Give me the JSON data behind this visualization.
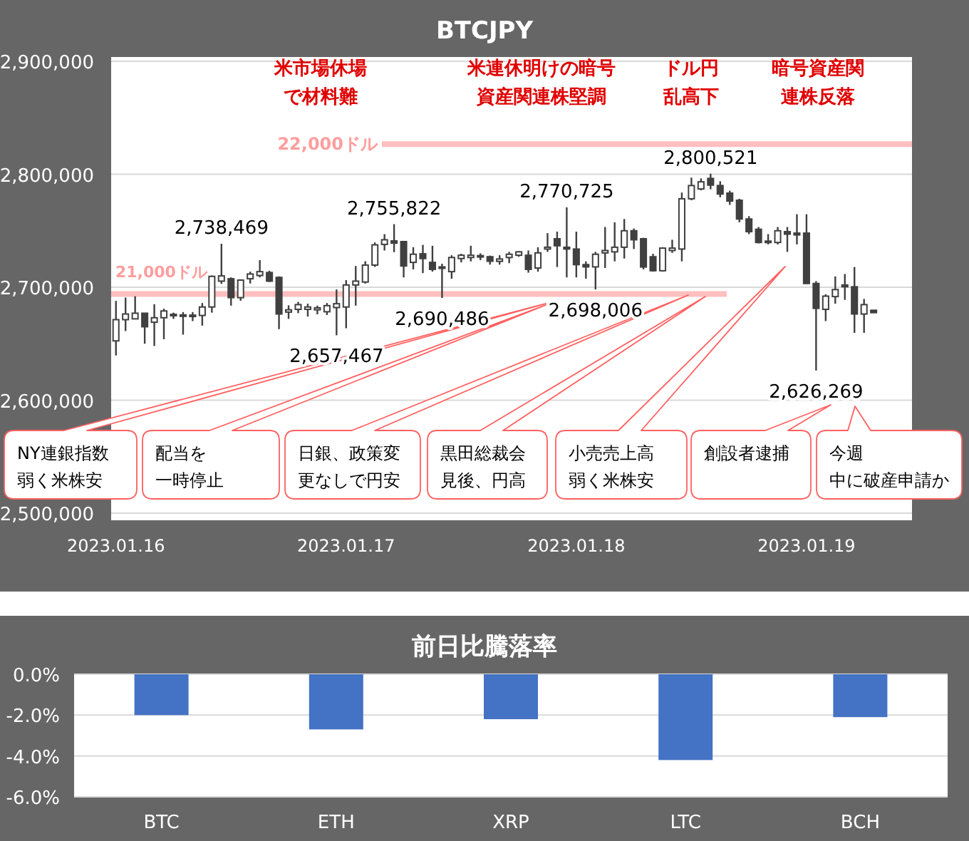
{
  "chart_data": [
    {
      "type": "candlestick",
      "title": "BTCJPY",
      "x": [
        "2023-01-16T00:00",
        "2023-01-16T01:00",
        "2023-01-16T02:00",
        "2023-01-16T03:00",
        "2023-01-16T04:00",
        "2023-01-16T05:00",
        "2023-01-16T06:00",
        "2023-01-16T07:00",
        "2023-01-16T08:00",
        "2023-01-16T09:00",
        "2023-01-16T10:00",
        "2023-01-16T11:00",
        "2023-01-16T12:00",
        "2023-01-16T13:00",
        "2023-01-16T14:00",
        "2023-01-16T15:00",
        "2023-01-16T16:00",
        "2023-01-16T17:00",
        "2023-01-16T18:00",
        "2023-01-16T19:00",
        "2023-01-16T20:00",
        "2023-01-16T21:00",
        "2023-01-16T22:00",
        "2023-01-16T23:00",
        "2023-01-17T00:00",
        "2023-01-17T01:00",
        "2023-01-17T02:00",
        "2023-01-17T03:00",
        "2023-01-17T04:00",
        "2023-01-17T05:00",
        "2023-01-17T06:00",
        "2023-01-17T07:00",
        "2023-01-17T08:00",
        "2023-01-17T09:00",
        "2023-01-17T10:00",
        "2023-01-17T11:00",
        "2023-01-17T12:00",
        "2023-01-17T13:00",
        "2023-01-17T14:00",
        "2023-01-17T15:00",
        "2023-01-17T16:00",
        "2023-01-17T17:00",
        "2023-01-17T18:00",
        "2023-01-17T19:00",
        "2023-01-17T20:00",
        "2023-01-17T21:00",
        "2023-01-17T22:00",
        "2023-01-17T23:00",
        "2023-01-18T00:00",
        "2023-01-18T01:00",
        "2023-01-18T02:00",
        "2023-01-18T03:00",
        "2023-01-18T04:00",
        "2023-01-18T05:00",
        "2023-01-18T06:00",
        "2023-01-18T07:00",
        "2023-01-18T08:00",
        "2023-01-18T09:00",
        "2023-01-18T10:00",
        "2023-01-18T11:00",
        "2023-01-18T12:00",
        "2023-01-18T13:00",
        "2023-01-18T14:00",
        "2023-01-18T15:00",
        "2023-01-18T16:00",
        "2023-01-18T17:00",
        "2023-01-18T18:00",
        "2023-01-18T19:00",
        "2023-01-18T20:00",
        "2023-01-18T21:00",
        "2023-01-18T22:00",
        "2023-01-18T23:00",
        "2023-01-19T00:00",
        "2023-01-19T01:00",
        "2023-01-19T02:00",
        "2023-01-19T03:00",
        "2023-01-19T04:00",
        "2023-01-19T05:00",
        "2023-01-19T06:00",
        "2023-01-19T07:00"
      ],
      "series": [
        {
          "color": "#404040",
          "ohlc": [
            [
              2652500,
              2687900,
              2639600,
              2671300
            ],
            [
              2671300,
              2690800,
              2661200,
              2676300
            ],
            [
              2672000,
              2692000,
              2672000,
              2677000
            ],
            [
              2677000,
              2677000,
              2650000,
              2665000
            ],
            [
              2669000,
              2685000,
              2648000,
              2673000
            ],
            [
              2673000,
              2681000,
              2654000,
              2679000
            ],
            [
              2676000,
              2677500,
              2672000,
              2675000
            ],
            [
              2675500,
              2678000,
              2658000,
              2675000
            ],
            [
              2674700,
              2678000,
              2670000,
              2675300
            ],
            [
              2675000,
              2686000,
              2666000,
              2682500
            ],
            [
              2682500,
              2710400,
              2677500,
              2709600
            ],
            [
              2705400,
              2738469,
              2703000,
              2710000
            ],
            [
              2707500,
              2708700,
              2683700,
              2690800
            ],
            [
              2690800,
              2707000,
              2688000,
              2706300
            ],
            [
              2707500,
              2713800,
              2703300,
              2711700
            ],
            [
              2710400,
              2724000,
              2708700,
              2713800
            ],
            [
              2713000,
              2714600,
              2704600,
              2705400
            ],
            [
              2708700,
              2709600,
              2662900,
              2676300
            ],
            [
              2678000,
              2684000,
              2672000,
              2680000
            ],
            [
              2680400,
              2687000,
              2677000,
              2684600
            ],
            [
              2680400,
              2685400,
              2674000,
              2682500
            ],
            [
              2680000,
              2683700,
              2676000,
              2681700
            ],
            [
              2678300,
              2686000,
              2675400,
              2683700
            ],
            [
              2682000,
              2698000,
              2657467,
              2685400
            ],
            [
              2682500,
              2706300,
              2663700,
              2702000
            ],
            [
              2702000,
              2718800,
              2683700,
              2705400
            ],
            [
              2704600,
              2723000,
              2703300,
              2719600
            ],
            [
              2719600,
              2739600,
              2718000,
              2737500
            ],
            [
              2737900,
              2747000,
              2732500,
              2742000
            ],
            [
              2741000,
              2755822,
              2731000,
              2739000
            ],
            [
              2740400,
              2740800,
              2708700,
              2718800
            ],
            [
              2722000,
              2735400,
              2715800,
              2729200
            ],
            [
              2729600,
              2737500,
              2712500,
              2725400
            ],
            [
              2722000,
              2736700,
              2713800,
              2715800
            ],
            [
              2718000,
              2720800,
              2690486,
              2716700
            ],
            [
              2713800,
              2728300,
              2707500,
              2726300
            ],
            [
              2725400,
              2729600,
              2722000,
              2728300
            ],
            [
              2726300,
              2736700,
              2722900,
              2728300
            ],
            [
              2727000,
              2730000,
              2724000,
              2728000
            ],
            [
              2727000,
              2728000,
              2720000,
              2723000
            ],
            [
              2722900,
              2728300,
              2720000,
              2725000
            ],
            [
              2726300,
              2731300,
              2721300,
              2729200
            ],
            [
              2728300,
              2732000,
              2727000,
              2731300
            ],
            [
              2728300,
              2732500,
              2712900,
              2715800
            ],
            [
              2717000,
              2735400,
              2713800,
              2730400
            ],
            [
              2733800,
              2747900,
              2731300,
              2735400
            ],
            [
              2742900,
              2749200,
              2717900,
              2736700
            ],
            [
              2735400,
              2770725,
              2708700,
              2733800
            ],
            [
              2733800,
              2749200,
              2708700,
              2720000
            ],
            [
              2720000,
              2722900,
              2707500,
              2718000
            ],
            [
              2718000,
              2731300,
              2698006,
              2729200
            ],
            [
              2730400,
              2753300,
              2717000,
              2732500
            ],
            [
              2731300,
              2757500,
              2722900,
              2735400
            ],
            [
              2735400,
              2760400,
              2725400,
              2750000
            ],
            [
              2750000,
              2752000,
              2733800,
              2742000
            ],
            [
              2742900,
              2743800,
              2715800,
              2717900
            ],
            [
              2727000,
              2729600,
              2713800,
              2714600
            ],
            [
              2714600,
              2735400,
              2713800,
              2734600
            ],
            [
              2732500,
              2742000,
              2730400,
              2734600
            ],
            [
              2733800,
              2783800,
              2722900,
              2778300
            ],
            [
              2778300,
              2797000,
              2777000,
              2790000
            ],
            [
              2787000,
              2796300,
              2785800,
              2793300
            ],
            [
              2796300,
              2800521,
              2786700,
              2790400
            ],
            [
              2790000,
              2793800,
              2779600,
              2782500
            ],
            [
              2783300,
              2785400,
              2772900,
              2776300
            ],
            [
              2777000,
              2778300,
              2757500,
              2760400
            ],
            [
              2760400,
              2762900,
              2747000,
              2749200
            ],
            [
              2751300,
              2753300,
              2738800,
              2739600
            ],
            [
              2740800,
              2747000,
              2737900,
              2739600
            ],
            [
              2739600,
              2753300,
              2737900,
              2750000
            ],
            [
              2749200,
              2753300,
              2731300,
              2747000
            ],
            [
              2747900,
              2764600,
              2737900,
              2746300
            ],
            [
              2747900,
              2764600,
              2703300,
              2703300
            ],
            [
              2703300,
              2705400,
              2626269,
              2681300
            ],
            [
              2680400,
              2693800,
              2670000,
              2692100
            ],
            [
              2691700,
              2709600,
              2685400,
              2697900
            ],
            [
              2702000,
              2711700,
              2688800,
              2700400
            ],
            [
              2700400,
              2717900,
              2659600,
              2676300
            ],
            [
              2676300,
              2689600,
              2659600,
              2684600
            ],
            [
              2679600,
              2679600,
              2677500,
              2677500
            ]
          ]
        }
      ],
      "xlim": [
        "2023-01-15T23:30",
        "2023-01-19T11:00"
      ],
      "xticks": [
        {
          "value": "2023-01-16",
          "label": "2023.01.16"
        },
        {
          "value": "2023-01-17",
          "label": "2023.01.17"
        },
        {
          "value": "2023-01-18",
          "label": "2023.01.18"
        },
        {
          "value": "2023-01-19",
          "label": "2023.01.19"
        }
      ],
      "ylim": [
        2500000,
        2900000
      ],
      "yticks": [
        {
          "value": 2500000,
          "label": "2,500,000"
        },
        {
          "value": 2600000,
          "label": "2,600,000"
        },
        {
          "value": 2700000,
          "label": "2,700,000"
        },
        {
          "value": 2800000,
          "label": "2,800,000"
        },
        {
          "value": 2900000,
          "label": "2,900,000"
        }
      ],
      "grid": "y",
      "ref_lines": [
        {
          "axis": "y",
          "value": 2826600,
          "label": "22,000ドル",
          "color": "#ffbfbf"
        },
        {
          "axis": "y",
          "value": 2694000,
          "label": "21,000ドル",
          "color": "#ffbfbf"
        }
      ],
      "annotations": [
        {
          "text": "2,738,469",
          "x": "2023-01-16T11:00",
          "y": 2738469
        },
        {
          "text": "2,657,467",
          "x": "2023-01-16T23:00",
          "y": 2657467
        },
        {
          "text": "2,755,822",
          "x": "2023-01-17T05:00",
          "y": 2755822
        },
        {
          "text": "2,690,486",
          "x": "2023-01-17T10:00",
          "y": 2690486
        },
        {
          "text": "2,770,725",
          "x": "2023-01-17T23:00",
          "y": 2770725
        },
        {
          "text": "2,698,006",
          "x": "2023-01-18T02:00",
          "y": 2698006
        },
        {
          "text": "2,800,521",
          "x": "2023-01-18T14:00",
          "y": 2800521
        },
        {
          "text": "2,626,269",
          "x": "2023-01-19T01:00",
          "y": 2626269
        },
        "米市場休場で材料難",
        "米連休明けの暗号資産関連株堅調",
        "ドル円乱高下",
        "暗号資産関連株反落",
        "NY連銀指数弱く米株安",
        "配当を一時停止",
        "日銀、政策変更なしで円安",
        "黒田総裁会見後、円高",
        "小売売上高弱く米株安",
        "創設者逮捕",
        "今週中に破産申請か"
      ]
    },
    {
      "type": "bar",
      "title": "前日比騰落率",
      "categories": [
        "BTC",
        "ETH",
        "XRP",
        "LTC",
        "BCH"
      ],
      "values": [
        -2.0,
        -2.7,
        -2.2,
        -4.2,
        -2.1
      ],
      "color": "#4472c4",
      "ylim": [
        -6,
        0
      ],
      "yticks": [
        {
          "value": -6,
          "label": "-6.0%"
        },
        {
          "value": -4,
          "label": "-4.0%"
        },
        {
          "value": -2,
          "label": "-2.0%"
        },
        {
          "value": 0,
          "label": "0.0%"
        }
      ],
      "grid": "y"
    }
  ]
}
